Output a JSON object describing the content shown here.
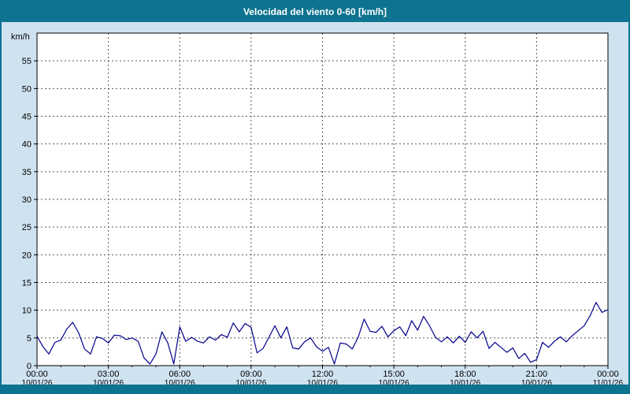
{
  "title_bar": {
    "title": "Velocidad del viento 0-60 [km/h]"
  },
  "colors": {
    "frame": "#0d7390",
    "background": "#cfe2ef",
    "grid": "#555555",
    "axis": "#000000",
    "line": "#00008b",
    "plot_background": "#ffffff"
  },
  "chart_data": {
    "type": "line",
    "title": "Velocidad del viento 0-60 [km/h]",
    "xlabel": "",
    "ylabel": "km/h",
    "xlim": [
      0,
      24
    ],
    "ylim": [
      0,
      60
    ],
    "ytick_step": 5,
    "ytick_labels": [
      "0",
      "5",
      "10",
      "15",
      "20",
      "25",
      "30",
      "35",
      "40",
      "45",
      "50",
      "55"
    ],
    "grid": "dashed",
    "legend": "none",
    "x_ticks": [
      {
        "hour": 0,
        "time": "00:00",
        "date": "10/01/26"
      },
      {
        "hour": 3,
        "time": "03:00",
        "date": "10/01/26"
      },
      {
        "hour": 6,
        "time": "06:00",
        "date": "10/01/26"
      },
      {
        "hour": 9,
        "time": "09:00",
        "date": "10/01/26"
      },
      {
        "hour": 12,
        "time": "12:00",
        "date": "10/01/26"
      },
      {
        "hour": 15,
        "time": "15:00",
        "date": "10/01/26"
      },
      {
        "hour": 18,
        "time": "18:00",
        "date": "10/01/26"
      },
      {
        "hour": 21,
        "time": "21:00",
        "date": "10/01/26"
      },
      {
        "hour": 24,
        "time": "00:00",
        "date": "11/01/26"
      }
    ],
    "series": [
      {
        "name": "Velocidad del viento",
        "color": "#00008b",
        "x_start_hour": 0,
        "x_step_hours": 0.25,
        "values": [
          5.3,
          3.4,
          2.1,
          4.2,
          4.6,
          6.6,
          7.8,
          5.9,
          3.0,
          2.1,
          5.2,
          4.9,
          4.1,
          5.5,
          5.4,
          4.7,
          5.0,
          4.4,
          1.4,
          0.3,
          2.1,
          6.1,
          4.1,
          0.3,
          7.0,
          4.4,
          5.1,
          4.4,
          4.1,
          5.2,
          4.6,
          5.6,
          5.1,
          7.7,
          6.1,
          7.6,
          6.9,
          2.3,
          3.1,
          5.1,
          7.2,
          5.0,
          7.0,
          3.2,
          3.0,
          4.3,
          5.0,
          3.4,
          2.6,
          3.3,
          0.3,
          4.1,
          3.9,
          3.0,
          5.1,
          8.4,
          6.2,
          6.0,
          7.1,
          5.2,
          6.3,
          7.0,
          5.4,
          8.1,
          6.4,
          8.9,
          7.2,
          5.1,
          4.3,
          5.2,
          4.1,
          5.3,
          4.2,
          6.1,
          5.0,
          6.2,
          3.1,
          4.2,
          3.3,
          2.4,
          3.2,
          1.3,
          2.2,
          0.6,
          1.1,
          4.2,
          3.3,
          4.4,
          5.2,
          4.3,
          5.4,
          6.3,
          7.2,
          9.0,
          11.4,
          9.6,
          10.1
        ]
      }
    ]
  }
}
